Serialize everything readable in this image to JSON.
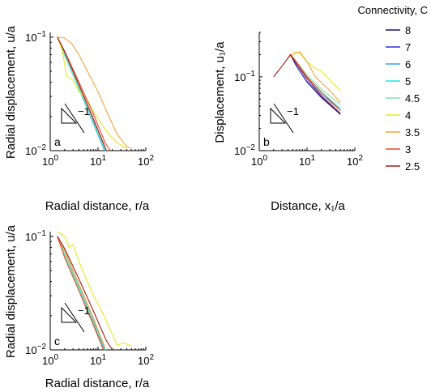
{
  "chart_data": [
    {
      "type": "line",
      "panel_label": "a",
      "xlabel": "Radial distance, r/a",
      "ylabel": "Radial displacement, u/a",
      "xscale": "log",
      "yscale": "log",
      "xlim": [
        1,
        100
      ],
      "ylim": [
        0.01,
        0.11
      ],
      "x_ticks": [
        "10^0",
        "10^1",
        "10^2"
      ],
      "y_ticks": [
        "10^-2",
        "10^-1"
      ],
      "slope_annotation": "−1",
      "series": [
        {
          "key": "8",
          "points": [
            [
              1.41,
              0.1
            ],
            [
              2,
              0.07
            ],
            [
              4,
              0.036
            ],
            [
              8,
              0.0178
            ],
            [
              15,
              0.0095
            ]
          ]
        },
        {
          "key": "7",
          "points": [
            [
              1.41,
              0.1
            ],
            [
              2,
              0.07
            ],
            [
              4,
              0.036
            ],
            [
              8,
              0.018
            ],
            [
              15,
              0.0097
            ]
          ]
        },
        {
          "key": "6",
          "points": [
            [
              1.41,
              0.1
            ],
            [
              2,
              0.069
            ],
            [
              4,
              0.035
            ],
            [
              8,
              0.0172
            ],
            [
              14,
              0.0098
            ]
          ]
        },
        {
          "key": "5",
          "points": [
            [
              1.41,
              0.1
            ],
            [
              2,
              0.069
            ],
            [
              4,
              0.035
            ],
            [
              8,
              0.0175
            ],
            [
              14.5,
              0.0098
            ]
          ]
        },
        {
          "key": "4.5",
          "points": [
            [
              1.41,
              0.1
            ],
            [
              2,
              0.07
            ],
            [
              4,
              0.036
            ],
            [
              8,
              0.0178
            ],
            [
              15,
              0.0097
            ]
          ]
        },
        {
          "key": "4",
          "points": [
            [
              1.41,
              0.1
            ],
            [
              1.8,
              0.075
            ],
            [
              2.2,
              0.045
            ],
            [
              3,
              0.042
            ],
            [
              4,
              0.033
            ],
            [
              6,
              0.028
            ],
            [
              8,
              0.022
            ],
            [
              12,
              0.017
            ],
            [
              18,
              0.0135
            ],
            [
              27,
              0.0115
            ],
            [
              40,
              0.0105
            ]
          ]
        },
        {
          "key": "3.5",
          "points": [
            [
              1.41,
              0.1
            ],
            [
              2,
              0.098
            ],
            [
              2.8,
              0.088
            ],
            [
              4,
              0.07
            ],
            [
              6,
              0.05
            ],
            [
              10,
              0.033
            ],
            [
              16,
              0.021
            ],
            [
              25,
              0.014
            ],
            [
              40,
              0.0108
            ],
            [
              50,
              0.0105
            ]
          ]
        },
        {
          "key": "3",
          "points": [
            [
              1.41,
              0.1
            ],
            [
              2,
              0.075
            ],
            [
              4,
              0.04
            ],
            [
              8,
              0.021
            ],
            [
              14,
              0.0118
            ],
            [
              18,
              0.01
            ]
          ]
        },
        {
          "key": "2.5",
          "points": [
            [
              1.41,
              0.1
            ],
            [
              2,
              0.074
            ],
            [
              4,
              0.038
            ],
            [
              8,
              0.019
            ],
            [
              15,
              0.01
            ]
          ]
        }
      ]
    },
    {
      "type": "line",
      "panel_label": "b",
      "xlabel": "Distance, x₁/a",
      "ylabel": "Displacement, u₁/a",
      "xscale": "log",
      "yscale": "log",
      "xlim": [
        1,
        100
      ],
      "ylim": [
        0.01,
        0.4
      ],
      "x_ticks": [
        "10^0",
        "10^1",
        "10^2"
      ],
      "y_ticks": [
        "10^-2",
        "10^-1"
      ],
      "slope_annotation": "−1",
      "series": [
        {
          "key": "8",
          "points": [
            [
              4.5,
              0.2
            ],
            [
              6,
              0.14
            ],
            [
              10,
              0.085
            ],
            [
              20,
              0.052
            ],
            [
              50,
              0.031
            ]
          ]
        },
        {
          "key": "7",
          "points": [
            [
              4.5,
              0.2
            ],
            [
              6,
              0.14
            ],
            [
              10,
              0.087
            ],
            [
              20,
              0.053
            ],
            [
              50,
              0.032
            ]
          ]
        },
        {
          "key": "6",
          "points": [
            [
              4.5,
              0.2
            ],
            [
              6,
              0.15
            ],
            [
              10,
              0.095
            ],
            [
              20,
              0.058
            ],
            [
              50,
              0.035
            ]
          ]
        },
        {
          "key": "5",
          "points": [
            [
              4.5,
              0.2
            ],
            [
              6,
              0.155
            ],
            [
              10,
              0.1
            ],
            [
              20,
              0.062
            ],
            [
              50,
              0.037
            ]
          ]
        },
        {
          "key": "4.5",
          "points": [
            [
              4.5,
              0.2
            ],
            [
              6,
              0.16
            ],
            [
              10,
              0.105
            ],
            [
              20,
              0.068
            ],
            [
              50,
              0.042
            ]
          ]
        },
        {
          "key": "4",
          "points": [
            [
              5,
              0.22
            ],
            [
              7,
              0.21
            ],
            [
              10,
              0.16
            ],
            [
              15,
              0.13
            ],
            [
              20,
              0.12
            ],
            [
              30,
              0.09
            ],
            [
              40,
              0.075
            ],
            [
              50,
              0.065
            ]
          ]
        },
        {
          "key": "3.5",
          "points": [
            [
              4,
              0.18
            ],
            [
              5,
              0.2
            ],
            [
              7,
              0.22
            ],
            [
              10,
              0.16
            ],
            [
              15,
              0.1
            ],
            [
              30,
              0.065
            ],
            [
              50,
              0.045
            ]
          ]
        },
        {
          "key": "3",
          "points": [
            [
              4.5,
              0.2
            ],
            [
              6,
              0.16
            ],
            [
              10,
              0.1
            ],
            [
              20,
              0.062
            ],
            [
              50,
              0.035
            ]
          ]
        },
        {
          "key": "2.5",
          "points": [
            [
              2,
              0.1
            ],
            [
              3,
              0.14
            ],
            [
              4.5,
              0.2
            ],
            [
              6,
              0.15
            ],
            [
              10,
              0.095
            ],
            [
              20,
              0.055
            ],
            [
              50,
              0.032
            ]
          ]
        }
      ]
    },
    {
      "type": "line",
      "panel_label": "c",
      "xlabel": "Radial distance, r/a",
      "ylabel": "Radial displacement, u/a",
      "xscale": "log",
      "yscale": "log",
      "xlim": [
        1,
        100
      ],
      "ylim": [
        0.01,
        0.11
      ],
      "x_ticks": [
        "10^0",
        "10^1",
        "10^2"
      ],
      "y_ticks": [
        "10^-2",
        "10^-1"
      ],
      "slope_annotation": "−1",
      "series": [
        {
          "key": "8",
          "points": [
            [
              1.41,
              0.1
            ],
            [
              2,
              0.07
            ],
            [
              4,
              0.036
            ],
            [
              8,
              0.0178
            ],
            [
              15,
              0.0095
            ]
          ]
        },
        {
          "key": "7",
          "points": [
            [
              1.41,
              0.1
            ],
            [
              2,
              0.07
            ],
            [
              4,
              0.036
            ],
            [
              8,
              0.018
            ],
            [
              15,
              0.0096
            ]
          ]
        },
        {
          "key": "6",
          "points": [
            [
              1.41,
              0.1
            ],
            [
              2,
              0.069
            ],
            [
              4,
              0.035
            ],
            [
              8,
              0.0172
            ],
            [
              14,
              0.0098
            ]
          ]
        },
        {
          "key": "5",
          "points": [
            [
              1.41,
              0.1
            ],
            [
              2,
              0.069
            ],
            [
              4,
              0.035
            ],
            [
              8,
              0.0175
            ],
            [
              14.5,
              0.0098
            ]
          ]
        },
        {
          "key": "4.5",
          "points": [
            [
              1.41,
              0.1
            ],
            [
              2,
              0.07
            ],
            [
              4,
              0.036
            ],
            [
              8,
              0.0178
            ],
            [
              15,
              0.0097
            ]
          ]
        },
        {
          "key": "4",
          "points": [
            [
              1.41,
              0.11
            ],
            [
              2,
              0.1
            ],
            [
              2.5,
              0.08
            ],
            [
              3,
              0.085
            ],
            [
              4,
              0.06
            ],
            [
              6,
              0.04
            ],
            [
              8,
              0.03
            ],
            [
              12,
              0.022
            ],
            [
              18,
              0.015
            ],
            [
              25,
              0.011
            ],
            [
              35,
              0.0115
            ],
            [
              50,
              0.0108
            ]
          ]
        },
        {
          "key": "3.5",
          "points": [
            [
              1.41,
              0.1
            ],
            [
              2,
              0.075
            ],
            [
              4,
              0.038
            ],
            [
              8,
              0.019
            ],
            [
              14,
              0.0105
            ]
          ]
        },
        {
          "key": "3",
          "points": [
            [
              1.41,
              0.1
            ],
            [
              2,
              0.065
            ],
            [
              4,
              0.033
            ],
            [
              8,
              0.0165
            ],
            [
              13,
              0.01
            ]
          ]
        },
        {
          "key": "2.5",
          "points": [
            [
              1.41,
              0.1
            ],
            [
              2,
              0.078
            ],
            [
              4,
              0.042
            ],
            [
              8,
              0.022
            ],
            [
              15,
              0.012
            ],
            [
              20,
              0.01
            ]
          ]
        }
      ]
    }
  ],
  "legend": {
    "title": "Connectivity, C",
    "placement": "top-right",
    "entries": [
      {
        "label": "8",
        "color": "#14147a"
      },
      {
        "label": "7",
        "color": "#2f2fe0"
      },
      {
        "label": "6",
        "color": "#31a2f0"
      },
      {
        "label": "5",
        "color": "#20e6e6"
      },
      {
        "label": "4.5",
        "color": "#80e6a8"
      },
      {
        "label": "4",
        "color": "#e8e82a"
      },
      {
        "label": "3.5",
        "color": "#f5a43a"
      },
      {
        "label": "3",
        "color": "#e44a26"
      },
      {
        "label": "2.5",
        "color": "#a81818"
      }
    ]
  }
}
